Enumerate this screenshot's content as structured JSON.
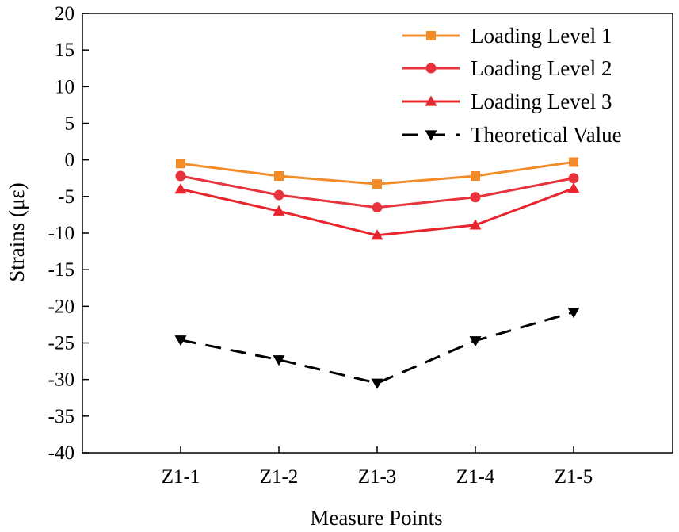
{
  "chart_data": {
    "type": "line",
    "title": "",
    "xlabel": "Measure Points",
    "ylabel": "Strains (με)",
    "categories": [
      "Z1-1",
      "Z1-2",
      "Z1-3",
      "Z1-4",
      "Z1-5"
    ],
    "ylim": [
      -40,
      20
    ],
    "yticks": [
      20,
      15,
      10,
      5,
      0,
      -5,
      -10,
      -15,
      -20,
      -25,
      -30,
      -35,
      -40
    ],
    "legend_position": "top-right",
    "grid": false,
    "series": [
      {
        "name": "Loading Level 1",
        "values": [
          -0.5,
          -2.2,
          -3.3,
          -2.2,
          -0.3
        ],
        "color": "#f28c28",
        "marker": "square",
        "dash": "solid"
      },
      {
        "name": "Loading Level 2",
        "values": [
          -2.2,
          -4.8,
          -6.5,
          -5.1,
          -2.5
        ],
        "color": "#e8323c",
        "marker": "circle",
        "dash": "solid"
      },
      {
        "name": "Loading Level 3",
        "values": [
          -4.0,
          -7.0,
          -10.3,
          -8.9,
          -3.9
        ],
        "color": "#e8242c",
        "marker": "triangle-up",
        "dash": "solid"
      },
      {
        "name": "Theoretical Value",
        "values": [
          -24.6,
          -27.3,
          -30.5,
          -24.7,
          -20.8
        ],
        "color": "#000000",
        "marker": "triangle-down",
        "dash": "dashed"
      }
    ]
  }
}
